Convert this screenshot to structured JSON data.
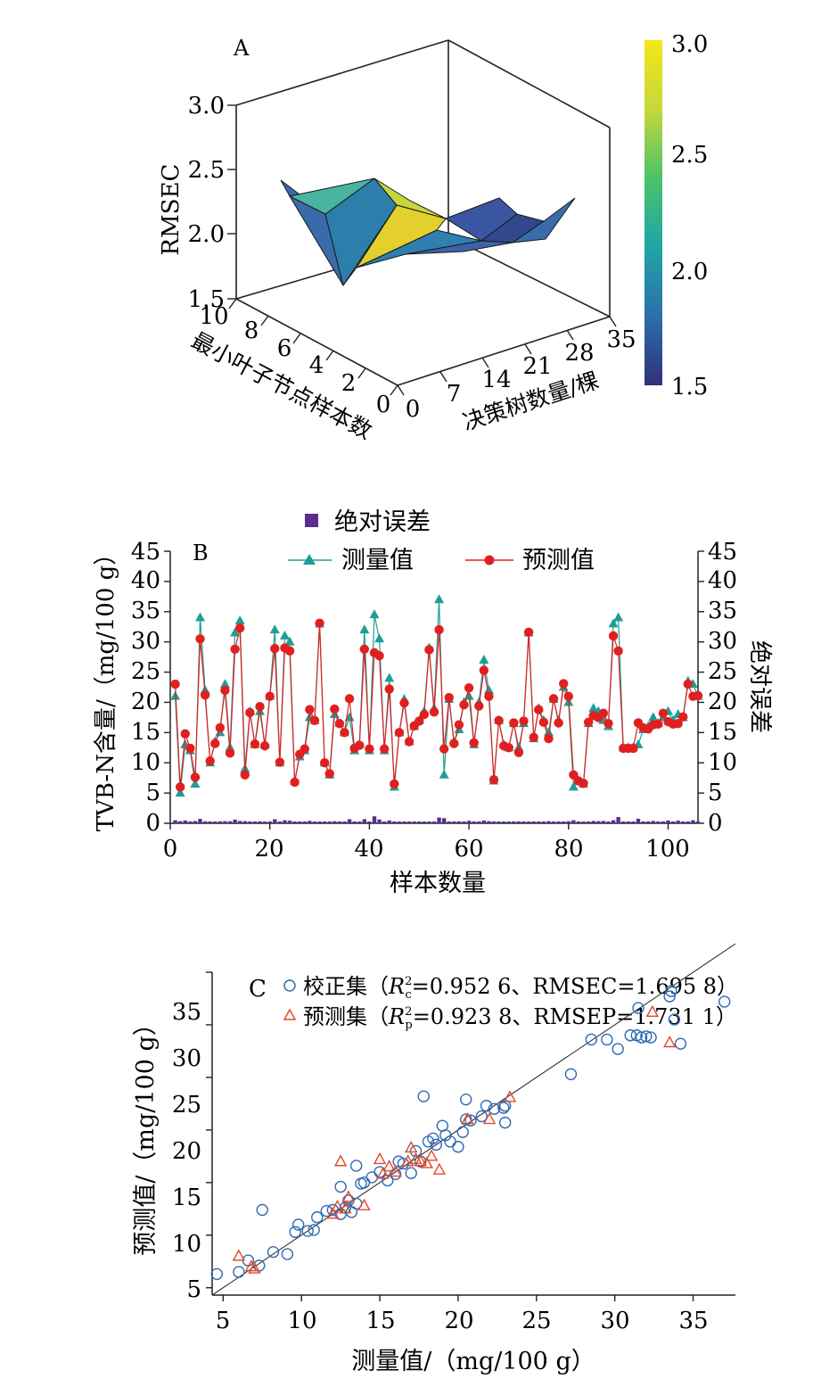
{
  "chart_data": [
    {
      "panel": "A",
      "type": "surface3d",
      "zlabel": "RMSEC",
      "zticks": [
        "1.5",
        "2.0",
        "2.5",
        "3.0"
      ],
      "zlim": [
        1.5,
        3.0
      ],
      "xlabel": "决策树数量/棵",
      "xticks": [
        "0",
        "7",
        "14",
        "21",
        "28",
        "35"
      ],
      "ylabel": "最小叶子节点样本数",
      "yticks": [
        "0",
        "2",
        "4",
        "6",
        "8",
        "10"
      ],
      "colorbar": {
        "ticks": [
          "1.5",
          "2.0",
          "2.5",
          "3.0"
        ],
        "min": 1.5,
        "max": 3.0,
        "colors": [
          "#31307a",
          "#2d6fa8",
          "#1fa5a6",
          "#4cc26a",
          "#c5d83a",
          "#f5e51a"
        ]
      },
      "trees": [
        7,
        14,
        21,
        28,
        35
      ],
      "leaves": [
        2,
        4,
        6,
        8,
        10
      ],
      "z": [
        [
          1.95,
          2.35,
          1.75,
          1.9,
          1.85
        ],
        [
          1.7,
          2.35,
          1.85,
          1.95,
          1.9
        ],
        [
          1.8,
          2.1,
          1.95,
          2.0,
          2.05
        ],
        [
          2.0,
          1.9,
          2.05,
          2.1,
          2.15
        ],
        [
          2.1,
          2.0,
          2.1,
          2.15,
          2.2
        ]
      ]
    },
    {
      "panel": "B",
      "type": "line",
      "xlabel": "样本数量",
      "ylabel": "TVB-N含量/（mg/100 g）",
      "y2label": "绝对误差",
      "xticks": [
        "0",
        "20",
        "40",
        "60",
        "80",
        "100"
      ],
      "yticks": [
        "0",
        "5",
        "10",
        "15",
        "20",
        "25",
        "30",
        "35",
        "40",
        "45"
      ],
      "xlim": [
        0,
        106
      ],
      "ylim": [
        0,
        45
      ],
      "legend": [
        "绝对误差",
        "测量值",
        "预测值"
      ],
      "colors": {
        "error": "#5b2d8e",
        "measured": "#1f9e96",
        "predicted": "#e02020"
      },
      "measured": [
        21.0,
        5.0,
        13.0,
        12.0,
        6.5,
        34.0,
        22.0,
        10.0,
        13.5,
        15.0,
        23.0,
        12.5,
        31.5,
        33.5,
        9.0,
        18.5,
        13.0,
        18.5,
        13.0,
        21.0,
        32.0,
        10.0,
        31.0,
        30.0,
        7.0,
        11.0,
        12.0,
        17.5,
        17.0,
        33.0,
        10.0,
        8.0,
        18.0,
        16.5,
        15.0,
        17.5,
        12.0,
        13.0,
        32.0,
        12.0,
        34.5,
        30.5,
        12.0,
        24.0,
        6.0,
        15.0,
        20.5,
        13.5,
        16.0,
        17.0,
        18.5,
        29.0,
        19.0,
        37.0,
        8.0,
        20.5,
        13.5,
        15.5,
        20.0,
        21.0,
        13.0,
        20.0,
        27.0,
        22.0,
        7.0,
        17.0,
        13.0,
        12.5,
        16.5,
        12.5,
        16.5,
        31.5,
        14.0,
        19.0,
        17.0,
        15.0,
        20.5,
        17.0,
        22.5,
        20.0,
        6.0,
        7.0,
        6.5,
        16.5,
        19.0,
        18.5,
        17.0,
        16.0,
        33.0,
        34.0,
        12.5,
        12.5,
        12.5,
        13.0,
        15.5,
        16.0,
        17.5,
        16.5,
        17.5,
        18.5,
        17.0,
        18.0,
        17.5,
        23.5,
        23.0,
        21.0
      ],
      "predicted": [
        23.0,
        6.0,
        14.8,
        12.4,
        7.6,
        30.5,
        21.2,
        10.3,
        13.2,
        15.8,
        22.0,
        11.6,
        28.8,
        32.3,
        8.0,
        18.3,
        13.1,
        19.3,
        12.8,
        21.0,
        28.9,
        10.1,
        29.0,
        28.5,
        6.8,
        11.4,
        12.3,
        18.8,
        17.0,
        33.1,
        10.0,
        8.2,
        18.9,
        16.5,
        15.0,
        20.6,
        12.4,
        12.9,
        28.8,
        12.3,
        28.2,
        27.7,
        12.3,
        22.2,
        6.5,
        15.0,
        19.9,
        13.5,
        16.1,
        16.9,
        18.0,
        28.7,
        18.4,
        32.0,
        12.3,
        20.8,
        13.2,
        16.3,
        19.6,
        22.4,
        13.3,
        19.4,
        25.3,
        21.0,
        7.2,
        17.0,
        12.8,
        12.5,
        16.6,
        11.7,
        16.9,
        31.6,
        14.2,
        18.8,
        16.7,
        14.0,
        20.6,
        16.6,
        23.1,
        21.0,
        8.0,
        7.0,
        6.6,
        16.7,
        17.8,
        17.5,
        18.2,
        16.5,
        31.0,
        28.5,
        12.4,
        12.4,
        12.4,
        16.6,
        15.8,
        15.6,
        16.3,
        16.4,
        18.2,
        16.8,
        16.4,
        16.5,
        17.6,
        23.0,
        21.0,
        21.1
      ]
    },
    {
      "panel": "C",
      "type": "scatter",
      "xlabel": "测量值/（mg/100 g）",
      "ylabel": "预测值/（mg/100 g）",
      "xticks": [
        "5",
        "10",
        "15",
        "20",
        "25",
        "30",
        "35"
      ],
      "yticks": [
        "5",
        "10",
        "15",
        "20",
        "25",
        "30",
        "35"
      ],
      "xlim": [
        4.3,
        37.7
      ],
      "ylim": [
        4.3,
        35.0
      ],
      "legend": [
        {
          "pre": "校正集（",
          "r": "R",
          "sup": "2",
          "sub": "c",
          "post": "=0.952 6、RMSEC=1.695 8）",
          "color": "#2f6bb5"
        },
        {
          "pre": "预测集（",
          "r": "R",
          "sup": "2",
          "sub": "p",
          "post": "=0.923 8、RMSEP=1.731 1）",
          "color": "#e0492a"
        }
      ],
      "calibration": [
        [
          4.6,
          6.3
        ],
        [
          6.0,
          6.5
        ],
        [
          6.6,
          7.6
        ],
        [
          7.3,
          7.1
        ],
        [
          7.5,
          12.4
        ],
        [
          8.2,
          8.4
        ],
        [
          9.1,
          8.2
        ],
        [
          9.6,
          10.3
        ],
        [
          9.8,
          11.0
        ],
        [
          10.4,
          10.4
        ],
        [
          10.8,
          10.5
        ],
        [
          11.0,
          11.7
        ],
        [
          11.6,
          12.3
        ],
        [
          12.0,
          12.4
        ],
        [
          12.5,
          12.0
        ],
        [
          12.5,
          14.6
        ],
        [
          12.8,
          12.6
        ],
        [
          13.0,
          13.3
        ],
        [
          13.2,
          12.2
        ],
        [
          13.5,
          16.6
        ],
        [
          13.5,
          13.0
        ],
        [
          13.8,
          14.9
        ],
        [
          14.0,
          15.0
        ],
        [
          14.5,
          15.5
        ],
        [
          15.0,
          16.0
        ],
        [
          15.5,
          15.2
        ],
        [
          16.0,
          15.8
        ],
        [
          16.2,
          17.0
        ],
        [
          16.5,
          16.8
        ],
        [
          17.0,
          15.9
        ],
        [
          17.3,
          18.0
        ],
        [
          17.6,
          17.0
        ],
        [
          17.8,
          23.2
        ],
        [
          18.1,
          18.9
        ],
        [
          18.4,
          19.2
        ],
        [
          18.6,
          18.6
        ],
        [
          19.0,
          20.4
        ],
        [
          19.2,
          19.5
        ],
        [
          19.5,
          18.9
        ],
        [
          20.0,
          18.4
        ],
        [
          20.3,
          19.8
        ],
        [
          20.5,
          21.0
        ],
        [
          20.5,
          22.9
        ],
        [
          20.8,
          20.9
        ],
        [
          21.5,
          21.3
        ],
        [
          21.8,
          22.3
        ],
        [
          22.3,
          22.0
        ],
        [
          22.9,
          22.1
        ],
        [
          23.0,
          22.3
        ],
        [
          23.0,
          20.7
        ],
        [
          27.2,
          25.3
        ],
        [
          28.5,
          28.6
        ],
        [
          29.5,
          28.6
        ],
        [
          30.2,
          27.7
        ],
        [
          31.0,
          29.0
        ],
        [
          31.4,
          29.0
        ],
        [
          31.5,
          31.6
        ],
        [
          31.7,
          28.8
        ],
        [
          32.0,
          28.9
        ],
        [
          32.3,
          28.8
        ],
        [
          33.5,
          32.7
        ],
        [
          33.6,
          33.2
        ],
        [
          33.8,
          30.5
        ],
        [
          34.2,
          28.2
        ],
        [
          37.0,
          32.2
        ]
      ],
      "prediction": [
        [
          6.0,
          8.0
        ],
        [
          6.8,
          7.0
        ],
        [
          7.0,
          6.8
        ],
        [
          12.0,
          12.0
        ],
        [
          12.3,
          12.7
        ],
        [
          12.5,
          17.0
        ],
        [
          12.8,
          12.5
        ],
        [
          13.0,
          13.6
        ],
        [
          14.0,
          12.8
        ],
        [
          15.0,
          17.2
        ],
        [
          15.2,
          15.8
        ],
        [
          15.6,
          16.5
        ],
        [
          16.0,
          16.0
        ],
        [
          16.8,
          17.0
        ],
        [
          17.0,
          18.3
        ],
        [
          17.3,
          17.2
        ],
        [
          17.6,
          17.0
        ],
        [
          18.0,
          16.8
        ],
        [
          18.3,
          17.5
        ],
        [
          18.8,
          16.2
        ],
        [
          20.6,
          21.0
        ],
        [
          22.0,
          21.0
        ],
        [
          23.3,
          23.1
        ],
        [
          32.4,
          31.2
        ],
        [
          33.5,
          28.3
        ]
      ],
      "fit_line": [
        [
          4.3,
          4.3
        ],
        [
          37.7,
          37.7
        ]
      ]
    }
  ]
}
